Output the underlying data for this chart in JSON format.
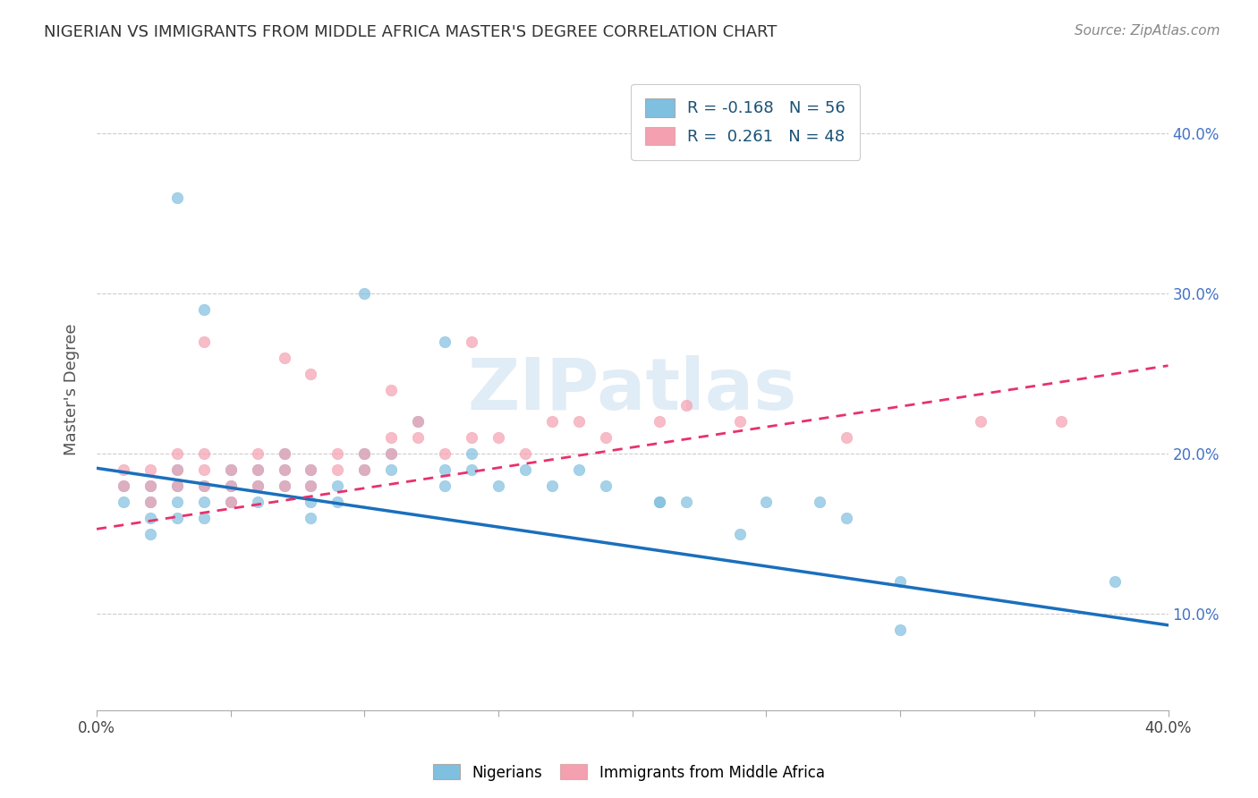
{
  "title": "NIGERIAN VS IMMIGRANTS FROM MIDDLE AFRICA MASTER'S DEGREE CORRELATION CHART",
  "source": "Source: ZipAtlas.com",
  "ylabel": "Master's Degree",
  "xlim": [
    0.0,
    0.4
  ],
  "ylim": [
    0.04,
    0.44
  ],
  "yticks": [
    0.1,
    0.2,
    0.3,
    0.4
  ],
  "ytick_labels": [
    "10.0%",
    "20.0%",
    "30.0%",
    "40.0%"
  ],
  "legend1_r": "-0.168",
  "legend1_n": "56",
  "legend2_r": "0.261",
  "legend2_n": "48",
  "series1_color": "#7fbfdf",
  "series2_color": "#f4a0b0",
  "trendline1_color": "#1a6fbd",
  "trendline2_color": "#e8326a",
  "watermark": "ZIPatlas",
  "trendline1_x": [
    0.0,
    0.4
  ],
  "trendline1_y": [
    0.191,
    0.093
  ],
  "trendline2_x": [
    0.0,
    0.4
  ],
  "trendline2_y": [
    0.153,
    0.255
  ],
  "nigerians_x": [
    0.01,
    0.01,
    0.02,
    0.02,
    0.02,
    0.02,
    0.03,
    0.03,
    0.03,
    0.03,
    0.04,
    0.04,
    0.04,
    0.05,
    0.05,
    0.05,
    0.06,
    0.06,
    0.06,
    0.07,
    0.07,
    0.07,
    0.08,
    0.08,
    0.08,
    0.08,
    0.09,
    0.09,
    0.1,
    0.1,
    0.11,
    0.11,
    0.12,
    0.13,
    0.13,
    0.14,
    0.14,
    0.15,
    0.16,
    0.17,
    0.18,
    0.19,
    0.21,
    0.22,
    0.24,
    0.27,
    0.3,
    0.38,
    0.03,
    0.04,
    0.1,
    0.13,
    0.21,
    0.25,
    0.28,
    0.3
  ],
  "nigerians_y": [
    0.18,
    0.17,
    0.18,
    0.17,
    0.16,
    0.15,
    0.19,
    0.18,
    0.17,
    0.16,
    0.18,
    0.17,
    0.16,
    0.19,
    0.18,
    0.17,
    0.19,
    0.18,
    0.17,
    0.2,
    0.19,
    0.18,
    0.19,
    0.18,
    0.17,
    0.16,
    0.18,
    0.17,
    0.2,
    0.19,
    0.2,
    0.19,
    0.22,
    0.19,
    0.18,
    0.2,
    0.19,
    0.18,
    0.19,
    0.18,
    0.19,
    0.18,
    0.17,
    0.17,
    0.15,
    0.17,
    0.12,
    0.12,
    0.36,
    0.29,
    0.3,
    0.27,
    0.17,
    0.17,
    0.16,
    0.09
  ],
  "immigrants_x": [
    0.01,
    0.01,
    0.02,
    0.02,
    0.02,
    0.03,
    0.03,
    0.03,
    0.04,
    0.04,
    0.04,
    0.05,
    0.05,
    0.05,
    0.06,
    0.06,
    0.06,
    0.07,
    0.07,
    0.07,
    0.08,
    0.08,
    0.09,
    0.09,
    0.1,
    0.1,
    0.11,
    0.11,
    0.12,
    0.12,
    0.13,
    0.14,
    0.15,
    0.16,
    0.17,
    0.19,
    0.21,
    0.22,
    0.04,
    0.07,
    0.08,
    0.11,
    0.14,
    0.18,
    0.24,
    0.28,
    0.33,
    0.36
  ],
  "immigrants_y": [
    0.19,
    0.18,
    0.19,
    0.18,
    0.17,
    0.2,
    0.19,
    0.18,
    0.2,
    0.19,
    0.18,
    0.19,
    0.18,
    0.17,
    0.2,
    0.19,
    0.18,
    0.2,
    0.19,
    0.18,
    0.19,
    0.18,
    0.2,
    0.19,
    0.2,
    0.19,
    0.21,
    0.2,
    0.22,
    0.21,
    0.2,
    0.21,
    0.21,
    0.2,
    0.22,
    0.21,
    0.22,
    0.23,
    0.27,
    0.26,
    0.25,
    0.24,
    0.27,
    0.22,
    0.22,
    0.21,
    0.22,
    0.22
  ]
}
